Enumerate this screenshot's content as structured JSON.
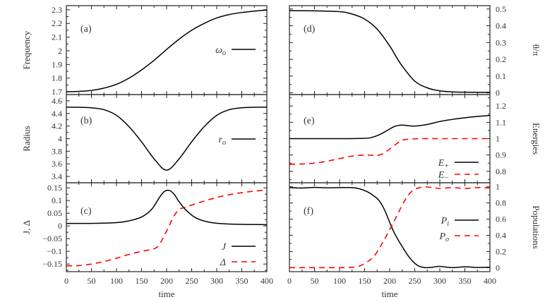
{
  "figure": {
    "x_axis_label": "time",
    "x_ticks": [
      0,
      50,
      100,
      150,
      200,
      250,
      300,
      350,
      400
    ],
    "x_range": [
      0,
      400
    ]
  },
  "chart_data": [
    {
      "id": "a",
      "type": "line",
      "panel_tag": "(a)",
      "ylabel": "Frequency",
      "ylabel_side": "left",
      "xlabel": "",
      "ylim": [
        1.68,
        2.33
      ],
      "yticks": [
        1.7,
        1.8,
        1.9,
        2.0,
        2.1,
        2.2,
        2.3
      ],
      "ytick_labels": [
        "1.7",
        "1.8",
        "1.9",
        "2",
        "2.1",
        "2.2",
        "2.3"
      ],
      "series": [
        {
          "name": "ω_o",
          "legend_base": "ω",
          "legend_sub": "o",
          "style": "solid",
          "color": "#000000",
          "x": [
            0,
            25,
            50,
            75,
            100,
            125,
            150,
            175,
            200,
            225,
            250,
            275,
            300,
            325,
            350,
            375,
            400
          ],
          "y": [
            1.7,
            1.703,
            1.71,
            1.727,
            1.755,
            1.8,
            1.86,
            1.93,
            2.01,
            2.085,
            2.15,
            2.2,
            2.24,
            2.265,
            2.28,
            2.29,
            2.298
          ]
        }
      ]
    },
    {
      "id": "b",
      "type": "line",
      "panel_tag": "(b)",
      "ylabel": "Radius",
      "ylabel_side": "left",
      "xlabel": "",
      "ylim": [
        3.3,
        4.7
      ],
      "yticks": [
        3.4,
        3.6,
        3.8,
        4.0,
        4.2,
        4.4,
        4.6
      ],
      "ytick_labels": [
        "3.4",
        "3.6",
        "3.8",
        "4",
        "4.2",
        "4.4",
        "4.6"
      ],
      "series": [
        {
          "name": "r_o",
          "legend_base": "r",
          "legend_sub": "o",
          "style": "solid",
          "color": "#000000",
          "x": [
            0,
            25,
            50,
            75,
            100,
            125,
            150,
            175,
            200,
            225,
            250,
            275,
            300,
            325,
            350,
            375,
            400
          ],
          "y": [
            4.5,
            4.498,
            4.49,
            4.46,
            4.37,
            4.19,
            3.95,
            3.68,
            3.5,
            3.68,
            3.95,
            4.19,
            4.37,
            4.46,
            4.49,
            4.498,
            4.5
          ]
        }
      ]
    },
    {
      "id": "c",
      "type": "line",
      "panel_tag": "(c)",
      "ylabel": "J, Δ",
      "ylabel_side": "left",
      "xlabel": "time",
      "ylim": [
        -0.18,
        0.17
      ],
      "yticks": [
        -0.15,
        -0.1,
        -0.05,
        0,
        0.05,
        0.1,
        0.15
      ],
      "ytick_labels": [
        "−0.15",
        "−0.1",
        "−0.05",
        "0",
        "0.05",
        "0.1",
        "0.15"
      ],
      "series": [
        {
          "name": "J",
          "legend_base": "J",
          "legend_sub": "",
          "style": "solid",
          "color": "#000000",
          "x": [
            0,
            50,
            100,
            125,
            150,
            170,
            185,
            195,
            205,
            215,
            225,
            240,
            260,
            290,
            330,
            400
          ],
          "y": [
            0.01,
            0.01,
            0.013,
            0.02,
            0.035,
            0.065,
            0.11,
            0.135,
            0.14,
            0.125,
            0.095,
            0.06,
            0.03,
            0.013,
            0.007,
            0.005
          ]
        },
        {
          "name": "Δ",
          "legend_base": "Δ",
          "legend_sub": "",
          "style": "dashed",
          "color": "#ff0000",
          "x": [
            0,
            25,
            50,
            75,
            100,
            125,
            150,
            175,
            185,
            195,
            205,
            215,
            225,
            235,
            250,
            275,
            300,
            325,
            350,
            375,
            400
          ],
          "y": [
            -0.157,
            -0.156,
            -0.15,
            -0.14,
            -0.127,
            -0.112,
            -0.1,
            -0.09,
            -0.075,
            -0.04,
            0.0,
            0.04,
            0.065,
            0.072,
            0.082,
            0.098,
            0.112,
            0.123,
            0.131,
            0.137,
            0.141
          ]
        }
      ]
    },
    {
      "id": "d",
      "type": "line",
      "panel_tag": "(d)",
      "ylabel": "θ/π",
      "ylabel_side": "right",
      "xlabel": "",
      "ylim": [
        -0.01,
        0.52
      ],
      "yticks": [
        0,
        0.1,
        0.2,
        0.3,
        0.4,
        0.5
      ],
      "ytick_labels": [
        "0",
        "0.1",
        "0.2",
        "0.3",
        "0.4",
        "0.5"
      ],
      "series": [
        {
          "name": "θ/π",
          "legend_base": "",
          "legend_sub": "",
          "style": "solid",
          "color": "#000000",
          "x": [
            0,
            50,
            100,
            125,
            150,
            175,
            200,
            212,
            225,
            250,
            275,
            300,
            325,
            350,
            375,
            400
          ],
          "y": [
            0.49,
            0.489,
            0.484,
            0.47,
            0.44,
            0.38,
            0.28,
            0.22,
            0.16,
            0.07,
            0.03,
            0.012,
            0.006,
            0.004,
            0.003,
            0.003
          ]
        }
      ]
    },
    {
      "id": "e",
      "type": "line",
      "panel_tag": "(e)",
      "ylabel": "Energies",
      "ylabel_side": "right",
      "xlabel": "",
      "ylim": [
        0.73,
        1.27
      ],
      "yticks": [
        0.8,
        0.9,
        1.0,
        1.1,
        1.2
      ],
      "ytick_labels": [
        "0.8",
        "0.9",
        "1",
        "1.1",
        "1.2"
      ],
      "series": [
        {
          "name": "E+",
          "legend_base": "E",
          "legend_sub": "+",
          "style": "solid",
          "color": "#000000",
          "x": [
            0,
            50,
            100,
            150,
            165,
            180,
            195,
            210,
            225,
            235,
            250,
            275,
            300,
            325,
            350,
            375,
            400
          ],
          "y": [
            1.0,
            1.0,
            1.0,
            1.002,
            1.008,
            1.025,
            1.05,
            1.075,
            1.083,
            1.08,
            1.077,
            1.087,
            1.105,
            1.118,
            1.128,
            1.136,
            1.142
          ]
        },
        {
          "name": "E−",
          "legend_base": "E",
          "legend_sub": "−",
          "style": "dashed",
          "color": "#ff0000",
          "x": [
            0,
            25,
            50,
            75,
            100,
            125,
            150,
            165,
            180,
            195,
            210,
            225,
            240,
            260,
            300,
            350,
            400
          ],
          "y": [
            0.843,
            0.845,
            0.85,
            0.862,
            0.878,
            0.893,
            0.9,
            0.898,
            0.9,
            0.925,
            0.96,
            0.99,
            0.997,
            1.0,
            1.0,
            1.0,
            1.0
          ]
        }
      ]
    },
    {
      "id": "f",
      "type": "line",
      "panel_tag": "(f)",
      "ylabel": "Populations",
      "ylabel_side": "right",
      "xlabel": "time",
      "ylim": [
        -0.05,
        1.05
      ],
      "yticks": [
        0,
        0.2,
        0.4,
        0.6,
        0.8,
        1.0
      ],
      "ytick_labels": [
        "0",
        "0.2",
        "0.4",
        "0.6",
        "0.8",
        "1"
      ],
      "series": [
        {
          "name": "P_i",
          "legend_base": "P",
          "legend_sub": "i",
          "style": "solid",
          "color": "#000000",
          "x": [
            0,
            25,
            50,
            75,
            100,
            125,
            140,
            155,
            170,
            180,
            190,
            200,
            210,
            225,
            240,
            255,
            270,
            285,
            300,
            325,
            350,
            375,
            400
          ],
          "y": [
            0.99,
            0.985,
            0.992,
            0.988,
            0.99,
            0.99,
            0.975,
            0.94,
            0.88,
            0.82,
            0.71,
            0.56,
            0.42,
            0.26,
            0.12,
            0.03,
            0.0,
            0.005,
            0.015,
            0.0,
            0.01,
            0.002,
            0.005
          ]
        },
        {
          "name": "P_o",
          "legend_base": "P",
          "legend_sub": "o",
          "style": "dashed",
          "color": "#ff0000",
          "x": [
            0,
            25,
            50,
            75,
            100,
            125,
            140,
            155,
            170,
            185,
            200,
            215,
            230,
            245,
            260,
            270,
            285,
            300,
            325,
            350,
            375,
            400
          ],
          "y": [
            0.0,
            0.0,
            0.0,
            0.0,
            0.0,
            0.005,
            0.02,
            0.07,
            0.15,
            0.3,
            0.47,
            0.65,
            0.83,
            0.95,
            0.99,
            1.0,
            0.99,
            0.98,
            0.99,
            0.98,
            0.99,
            0.985
          ]
        }
      ]
    }
  ]
}
